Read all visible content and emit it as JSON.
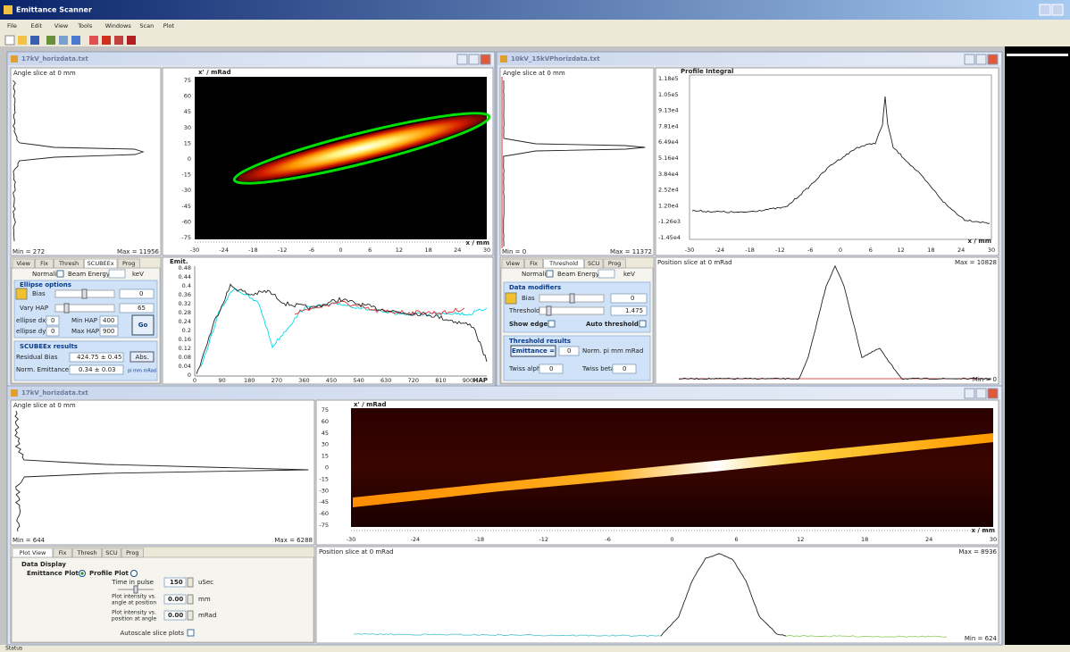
{
  "app": {
    "title": "Emittance Scanner",
    "menu": [
      "File",
      "Edit",
      "View",
      "Tools",
      "Windows",
      "Scan",
      "Plot"
    ],
    "status": "Status"
  },
  "windows": [
    {
      "title": "17kV_horizdata.txt",
      "slice": {
        "label": "Angle slice at 0 mm",
        "min": "Min = 272",
        "max": "Max = 11956"
      },
      "heatmap": {
        "y_label": "x' / mRad",
        "yticks": [
          "75",
          "60",
          "45",
          "30",
          "15",
          "0",
          "-15",
          "-30",
          "-45",
          "-60",
          "-75"
        ],
        "xticks": [
          "-30",
          "-24",
          "-18",
          "-12",
          "-6",
          "0",
          "6",
          "12",
          "18",
          "24",
          "30"
        ],
        "x_label": "x / mm"
      },
      "tabs": [
        "View",
        "Fix",
        "Thresh",
        "SCUBEEx",
        "Prog"
      ],
      "controls": {
        "normalize": "Normalize",
        "beam_energy": "Beam Energy",
        "kev": "keV",
        "group": "Ellipse options",
        "bias": "Bias",
        "bias_value": "0",
        "vary_hap": "Vary HAP",
        "vary_hap_value": "65",
        "ellipse_dx": "ellipse dx",
        "ellipse_dx_value": "0",
        "min_hap": "Min HAP",
        "min_hap_value": "400",
        "ellipse_dy": "ellipse dy",
        "ellipse_dy_value": "0",
        "max_hap": "Max HAP",
        "max_hap_value": "900",
        "go": "Go",
        "results": "SCUBEEx results",
        "residual_bias": "Residual Bias",
        "residual_bias_value": "424.75 ± 0.45",
        "norm_emittance": "Norm. Emittance",
        "norm_emittance_value": "0.34 ± 0.03",
        "abs": "Abs.",
        "units": "pi mm mRad"
      },
      "emit_plot": {
        "y_label": "Emit.",
        "yticks": [
          "0.48",
          "0.44",
          "0.4",
          "0.36",
          "0.32",
          "0.28",
          "0.24",
          "0.2",
          "0.16",
          "0.12",
          "0.08",
          "0.04",
          "0"
        ],
        "xticks": [
          "0",
          "90",
          "180",
          "270",
          "360",
          "450",
          "540",
          "630",
          "720",
          "810",
          "900"
        ],
        "x_label": "HAP"
      }
    },
    {
      "title": "10kV_15kVPhorizdata.txt",
      "slice": {
        "label": "Angle slice at 0 mm",
        "min": "Min = 0",
        "max": "Max = 11372"
      },
      "profile": {
        "label": "Profile Integral",
        "yticks": [
          "1.18e5",
          "1.05e5",
          "9.13e4",
          "7.81e4",
          "6.49e4",
          "5.16e4",
          "3.84e4",
          "2.52e4",
          "1.20e4",
          "-1.26e3",
          "-1.45e4"
        ],
        "xticks": [
          "-30",
          "-24",
          "-18",
          "-12",
          "-6",
          "0",
          "6",
          "12",
          "18",
          "24",
          "30"
        ],
        "x_label": "x / mm"
      },
      "tabs": [
        "View",
        "Fix",
        "Threshold",
        "SCU",
        "Prog"
      ],
      "controls": {
        "normalize": "Normalize",
        "beam_energy": "Beam Energy",
        "kev": "keV",
        "group": "Data modifiers",
        "bias": "Bias",
        "bias_value": "0",
        "threshold": "Threshold",
        "threshold_value": "1.475",
        "show_edge": "Show edge",
        "auto_threshold": "Auto threshold",
        "results": "Threshold results",
        "emittance": "Emittance =",
        "emittance_value": "0",
        "units": "Norm. pi mm mRad",
        "twiss_alpha": "Twiss alpha",
        "twiss_alpha_value": "0",
        "twiss_beta": "Twiss beta",
        "twiss_beta_value": "0"
      },
      "position_slice": {
        "label": "Position slice at 0 mRad",
        "max": "Max = 10828",
        "min": "Min = 0"
      }
    },
    {
      "title": "17kV_horizdata.txt",
      "slice": {
        "label": "Angle slice at 0 mm",
        "min": "Min = 644",
        "max": "Max = 6288"
      },
      "heatmap": {
        "y_label": "x' / mRad",
        "yticks": [
          "75",
          "60",
          "45",
          "30",
          "15",
          "0",
          "-15",
          "-30",
          "-45",
          "-60",
          "-75"
        ],
        "xticks": [
          "-30",
          "-24",
          "-18",
          "-12",
          "-6",
          "0",
          "6",
          "12",
          "18",
          "24",
          "30"
        ],
        "x_label": "x / mm"
      },
      "tabs": [
        "Plot View",
        "Fix",
        "Thresh",
        "SCU",
        "Prog"
      ],
      "controls": {
        "group": "Data Display",
        "emittance_plot": "Emittance Plot",
        "profile_plot": "Profile Plot",
        "time_in_pulse": "Time in pulse",
        "time_value": "150",
        "time_units": "uSec",
        "intensity_vs_angle": [
          "Plot intensity vs.",
          "angle at position"
        ],
        "angle_value": "0.00",
        "angle_units": "mm",
        "intensity_vs_position": [
          "Plot intensity vs.",
          "position at angle"
        ],
        "position_value": "0.00",
        "position_units": "mRad",
        "autoscale": "Autoscale slice plots"
      },
      "position_slice": {
        "label": "Position slice at 0 mRad",
        "max": "Max = 8936",
        "min": "Min = 624"
      }
    }
  ]
}
